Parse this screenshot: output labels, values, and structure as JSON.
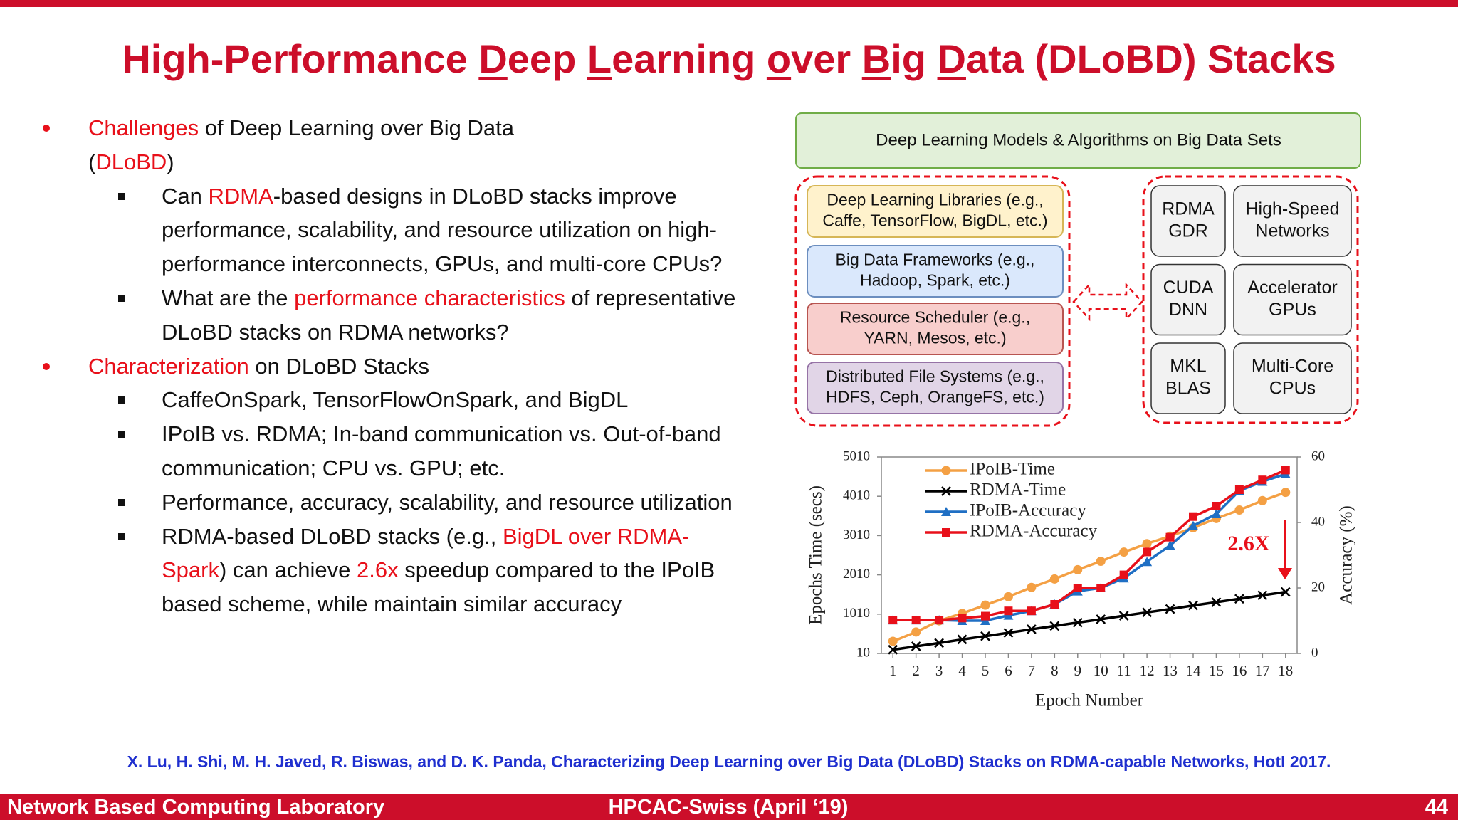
{
  "title": {
    "parts": [
      {
        "text": "High-Performance "
      },
      {
        "text": "D",
        "underline": true
      },
      {
        "text": "eep "
      },
      {
        "text": "L",
        "underline": true
      },
      {
        "text": "earning "
      },
      {
        "text": "o",
        "underline": true
      },
      {
        "text": "ver "
      },
      {
        "text": "B",
        "underline": true
      },
      {
        "text": "ig "
      },
      {
        "text": "D",
        "underline": true
      },
      {
        "text": "ata (DLoBD) Stacks"
      }
    ]
  },
  "bullets": [
    {
      "level": 1,
      "parts": [
        {
          "text": "Challenges",
          "color": "#e8101a"
        },
        {
          "text": " of Deep Learning over Big Data ("
        },
        {
          "text": "DLoBD",
          "color": "#e8101a"
        },
        {
          "text": ")"
        }
      ]
    },
    {
      "level": 2,
      "parts": [
        {
          "text": "Can "
        },
        {
          "text": "RDMA",
          "color": "#e8101a"
        },
        {
          "text": "-based designs in DLoBD stacks improve performance, scalability, and resource utilization on high-performance interconnects, GPUs, and multi-core CPUs?"
        }
      ]
    },
    {
      "level": 2,
      "parts": [
        {
          "text": "What are the "
        },
        {
          "text": "performance characteristics",
          "color": "#e8101a"
        },
        {
          "text": " of representative DLoBD stacks on RDMA networks?"
        }
      ]
    },
    {
      "level": 1,
      "parts": [
        {
          "text": "Characterization",
          "color": "#e8101a"
        },
        {
          "text": " on DLoBD Stacks"
        }
      ]
    },
    {
      "level": 2,
      "parts": [
        {
          "text": "CaffeOnSpark, TensorFlowOnSpark, and BigDL"
        }
      ]
    },
    {
      "level": 2,
      "parts": [
        {
          "text": "IPoIB vs. RDMA; In-band communication vs. Out-of-band communication; CPU vs. GPU; etc."
        }
      ]
    },
    {
      "level": 2,
      "parts": [
        {
          "text": "Performance, accuracy, scalability, and resource utilization"
        }
      ]
    },
    {
      "level": 2,
      "parts": [
        {
          "text": "RDMA-based DLoBD stacks (e.g., "
        },
        {
          "text": "BigDL over RDMA-Spark",
          "color": "#e8101a"
        },
        {
          "text": ") can achieve "
        },
        {
          "text": "2.6x",
          "color": "#e8101a"
        },
        {
          "text": " speedup compared to the IPoIB based scheme, while maintain similar accuracy"
        }
      ]
    }
  ],
  "diagram": {
    "top": "Deep Learning Models & Algorithms on Big Data Sets",
    "layers": [
      {
        "lines": [
          "Deep Learning Libraries (e.g.,",
          "Caffe, TensorFlow, BigDL, etc.)"
        ]
      },
      {
        "lines": [
          "Big Data Frameworks  (e.g.,",
          "Hadoop, Spark, etc.)"
        ]
      },
      {
        "lines": [
          "Resource Scheduler (e.g.,",
          "YARN, Mesos, etc.)"
        ]
      },
      {
        "lines": [
          "Distributed File Systems (e.g.,",
          "HDFS, Ceph, OrangeFS, etc.)"
        ]
      }
    ],
    "components": [
      {
        "lines": [
          "RDMA",
          "GDR"
        ]
      },
      {
        "lines": [
          "High-Speed",
          "Networks"
        ]
      },
      {
        "lines": [
          "CUDA",
          "DNN"
        ]
      },
      {
        "lines": [
          "Accelerator",
          "GPUs"
        ]
      },
      {
        "lines": [
          "MKL",
          "BLAS"
        ]
      },
      {
        "lines": [
          "Multi-Core",
          "CPUs"
        ]
      }
    ]
  },
  "chart_data": {
    "type": "line",
    "x_label": "Epoch Number",
    "y_label": "Epochs Time (secs)",
    "y2_label": "Accuracy (%)",
    "x": [
      1,
      2,
      3,
      4,
      5,
      6,
      7,
      8,
      9,
      10,
      11,
      12,
      13,
      14,
      15,
      16,
      17,
      18
    ],
    "xlim": [
      0.5,
      18.5
    ],
    "xticks": [
      1,
      2,
      3,
      4,
      5,
      6,
      7,
      8,
      9,
      10,
      11,
      12,
      13,
      14,
      15,
      16,
      17,
      18
    ],
    "ylim": [
      10,
      5010
    ],
    "yticks": [
      10,
      1010,
      2010,
      3010,
      4010,
      5010
    ],
    "y2lim": [
      0,
      60
    ],
    "y2ticks": [
      0,
      20,
      40,
      60
    ],
    "annotation": "2.6X",
    "series": [
      {
        "name": "IPoIB-Time",
        "color": "#f4a044",
        "marker": "circle",
        "values": [
          318,
          555,
          840,
          1030,
          1240,
          1455,
          1690,
          1905,
          2140,
          2355,
          2590,
          2805,
          2995,
          3210,
          3445,
          3660,
          3900,
          4110
        ]
      },
      {
        "name": "RDMA-Time",
        "color": "#000000",
        "marker": "x",
        "values": [
          105,
          190,
          275,
          365,
          450,
          535,
          625,
          710,
          795,
          880,
          970,
          1055,
          1140,
          1230,
          1315,
          1400,
          1490,
          1575
        ]
      },
      {
        "name": "IPoIB-Accuracy",
        "color": "#1f6fc4",
        "marker": "triangle",
        "axis": "y2",
        "values": [
          10.2,
          10.2,
          10.2,
          10,
          10,
          11.6,
          13,
          15,
          19,
          20,
          23,
          28,
          33,
          39,
          42.6,
          49.7,
          52.5,
          54.8
        ]
      },
      {
        "name": "RDMA-Accuracy",
        "color": "#e8101a",
        "marker": "square",
        "axis": "y2",
        "values": [
          10.2,
          10.2,
          10.2,
          10.8,
          11.4,
          13,
          13,
          15,
          20,
          20,
          24,
          31,
          35.5,
          41.8,
          45,
          50,
          53,
          56
        ]
      }
    ]
  },
  "citation": "X. Lu, H. Shi, M. H. Javed, R. Biswas, and D. K. Panda, Characterizing Deep Learning over Big Data (DLoBD) Stacks on RDMA-capable Networks, HotI 2017.",
  "footer": {
    "left": "Network Based Computing Laboratory",
    "center": "HPCAC-Swiss (April ‘19)",
    "right": "44"
  }
}
